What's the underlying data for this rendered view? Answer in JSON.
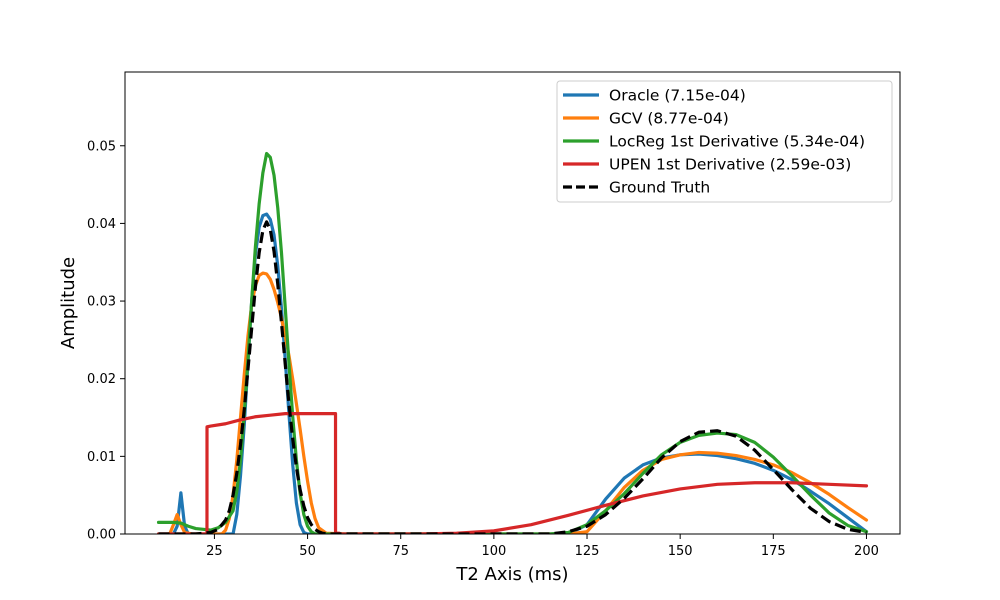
{
  "chart_data": {
    "type": "line",
    "title": "",
    "xlabel": "T2 Axis (ms)",
    "ylabel": "Amplitude",
    "xlim": [
      1,
      209
    ],
    "ylim": [
      0,
      0.0595
    ],
    "xticks": [
      25,
      50,
      75,
      100,
      125,
      150,
      175,
      200
    ],
    "xtick_labels": [
      "25",
      "50",
      "75",
      "100",
      "125",
      "150",
      "175",
      "200"
    ],
    "yticks": [
      0,
      0.01,
      0.02,
      0.03,
      0.04,
      0.05
    ],
    "ytick_labels": [
      "0.00",
      "0.01",
      "0.02",
      "0.03",
      "0.04",
      "0.05"
    ],
    "grid": false,
    "legend_position": "upper right",
    "series": [
      {
        "name": "Oracle (7.15e-04)",
        "color": "#1f77b4",
        "dash": false,
        "x": [
          10,
          14,
          15,
          16,
          17,
          18,
          20,
          22,
          24,
          26,
          28,
          30,
          31,
          32,
          33,
          34,
          35,
          36,
          37,
          38,
          39,
          40,
          41,
          42,
          43,
          44,
          45,
          46,
          47,
          48,
          49,
          50,
          52,
          55,
          60,
          80,
          100,
          115,
          120,
          125,
          130,
          135,
          140,
          145,
          150,
          155,
          160,
          165,
          170,
          175,
          180,
          185,
          190,
          195,
          200
        ],
        "y": [
          0,
          0,
          0.001,
          0.0053,
          0.001,
          0,
          0,
          0,
          0,
          0,
          0,
          0,
          0.0025,
          0.0075,
          0.014,
          0.022,
          0.03,
          0.036,
          0.0395,
          0.041,
          0.0412,
          0.0405,
          0.0385,
          0.0345,
          0.029,
          0.0225,
          0.0155,
          0.009,
          0.004,
          0.0012,
          0.0002,
          0,
          0,
          0,
          0,
          0,
          0,
          0,
          0,
          0.0012,
          0.0045,
          0.0072,
          0.0089,
          0.0098,
          0.0102,
          0.0103,
          0.0101,
          0.0097,
          0.0091,
          0.0082,
          0.007,
          0.0055,
          0.0039,
          0.0021,
          0.0003
        ]
      },
      {
        "name": "GCV (8.77e-04)",
        "color": "#ff7f0e",
        "dash": false,
        "x": [
          10,
          13,
          14,
          15,
          16,
          17,
          19,
          22,
          25,
          27,
          28,
          29,
          30,
          31,
          32,
          33,
          34,
          35,
          36,
          37,
          38,
          39,
          40,
          41,
          42,
          43,
          44,
          45,
          46,
          47,
          48,
          49,
          50,
          51,
          52,
          53,
          55,
          60,
          80,
          100,
          115,
          120,
          125,
          130,
          135,
          140,
          145,
          150,
          155,
          160,
          165,
          170,
          175,
          180,
          185,
          190,
          195,
          200
        ],
        "y": [
          0,
          0,
          0.0012,
          0.0025,
          0.0012,
          0.0002,
          0,
          0,
          0,
          0,
          0.0005,
          0.002,
          0.005,
          0.0095,
          0.015,
          0.0205,
          0.0255,
          0.0295,
          0.032,
          0.0333,
          0.0336,
          0.0335,
          0.0328,
          0.0315,
          0.0298,
          0.0278,
          0.0255,
          0.023,
          0.02,
          0.0168,
          0.0135,
          0.01,
          0.0068,
          0.004,
          0.002,
          0.0008,
          0.0001,
          0,
          0,
          0,
          0,
          0,
          0.0003,
          0.003,
          0.006,
          0.0082,
          0.0096,
          0.0102,
          0.0105,
          0.0104,
          0.0101,
          0.0096,
          0.0089,
          0.0079,
          0.0066,
          0.0051,
          0.0034,
          0.0018
        ],
        "y_note": ""
      },
      {
        "name": "LocReg 1st Derivative (5.34e-04)",
        "color": "#2ca02c",
        "dash": false,
        "x": [
          10,
          12,
          14,
          16,
          18,
          20,
          22,
          24,
          26,
          28,
          30,
          31,
          32,
          33,
          34,
          35,
          36,
          37,
          38,
          39,
          40,
          41,
          42,
          43,
          44,
          45,
          46,
          47,
          48,
          49,
          50,
          51,
          52,
          55,
          60,
          80,
          100,
          115,
          120,
          125,
          130,
          135,
          140,
          145,
          150,
          155,
          160,
          165,
          170,
          175,
          180,
          185,
          190,
          195,
          200
        ],
        "y": [
          0.0015,
          0.0015,
          0.0015,
          0.0014,
          0.001,
          0.0007,
          0.0006,
          0.0005,
          0.0008,
          0.0015,
          0.003,
          0.0055,
          0.0095,
          0.0155,
          0.0225,
          0.03,
          0.037,
          0.0425,
          0.0465,
          0.049,
          0.0485,
          0.0462,
          0.042,
          0.0362,
          0.0292,
          0.022,
          0.0152,
          0.0095,
          0.0052,
          0.0025,
          0.001,
          0.0003,
          0,
          0,
          0,
          0,
          0,
          0,
          0.0002,
          0.0012,
          0.003,
          0.0052,
          0.0078,
          0.0102,
          0.0118,
          0.0127,
          0.013,
          0.0128,
          0.0118,
          0.0099,
          0.0075,
          0.005,
          0.0027,
          0.0011,
          0.0003
        ]
      },
      {
        "name": "UPEN 1st Derivative (2.59e-03)",
        "color": "#d62728",
        "dash": false,
        "x": [
          10,
          23,
          23.01,
          24,
          28,
          32,
          36,
          40,
          44,
          48,
          52,
          56,
          57.5,
          57.51,
          58.5,
          58.51,
          70,
          80,
          90,
          100,
          110,
          120,
          130,
          140,
          150,
          160,
          170,
          180,
          190,
          200
        ],
        "y": [
          0,
          0,
          0.0138,
          0.0139,
          0.0142,
          0.0147,
          0.0151,
          0.0153,
          0.0155,
          0.0155,
          0.0155,
          0.0155,
          0.0155,
          0.0001,
          0.0001,
          0,
          0,
          0,
          0.0001,
          0.0004,
          0.0012,
          0.0024,
          0.0037,
          0.0049,
          0.0058,
          0.0064,
          0.0066,
          0.0066,
          0.0064,
          0.0062
        ]
      },
      {
        "name": "Ground Truth",
        "color": "#000000",
        "dash": true,
        "x": [
          10,
          20,
          24,
          26,
          28,
          29,
          30,
          31,
          32,
          33,
          34,
          35,
          36,
          37,
          38,
          39,
          40,
          41,
          42,
          43,
          44,
          45,
          46,
          47,
          48,
          49,
          50,
          51,
          52,
          53,
          54,
          56,
          60,
          80,
          100,
          115,
          120,
          125,
          130,
          135,
          140,
          145,
          150,
          155,
          160,
          165,
          170,
          175,
          180,
          185,
          190,
          195,
          200
        ],
        "y": [
          0,
          0,
          0.0002,
          0.0006,
          0.0018,
          0.003,
          0.005,
          0.0078,
          0.0115,
          0.016,
          0.0212,
          0.0265,
          0.0318,
          0.0362,
          0.0391,
          0.0402,
          0.0392,
          0.0364,
          0.0322,
          0.0272,
          0.0219,
          0.0168,
          0.0123,
          0.0086,
          0.0057,
          0.0036,
          0.0021,
          0.0012,
          0.0006,
          0.0003,
          0.0001,
          0,
          0,
          0,
          0,
          0,
          0.0003,
          0.001,
          0.0025,
          0.0046,
          0.0071,
          0.0098,
          0.0119,
          0.0131,
          0.0133,
          0.0126,
          0.0108,
          0.0083,
          0.0057,
          0.0033,
          0.0016,
          0.0006,
          0.0002
        ]
      }
    ]
  }
}
